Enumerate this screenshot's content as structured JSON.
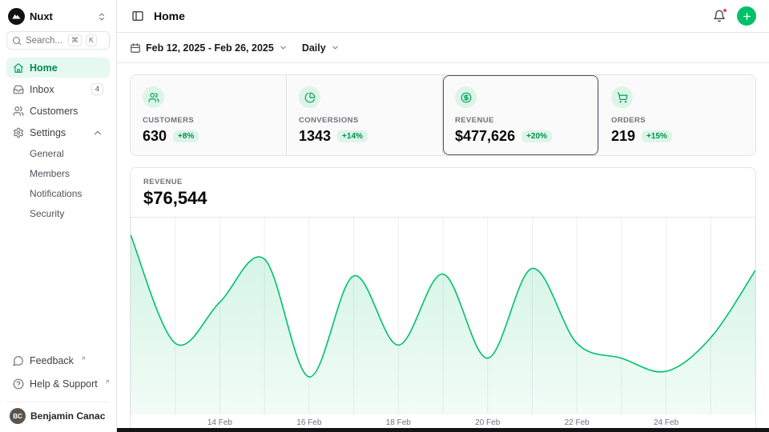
{
  "theme": {
    "accent": "#00c16a",
    "accent_soft": "#ddf4e8",
    "delta_text": "#00914c"
  },
  "sidebar": {
    "workspace": {
      "name": "Nuxt",
      "logo_icon": "nuxt-logo",
      "toggle_icon": "chevrons-up-down-icon"
    },
    "search": {
      "placeholder": "Search...",
      "icon": "search-icon",
      "shortcut": [
        "⌘",
        "K"
      ]
    },
    "items": [
      {
        "label": "Home",
        "icon": "home-icon",
        "active": true
      },
      {
        "label": "Inbox",
        "icon": "inbox-icon",
        "badge": "4"
      },
      {
        "label": "Customers",
        "icon": "users-icon"
      },
      {
        "label": "Settings",
        "icon": "gear-icon",
        "expanded": true,
        "children": [
          "General",
          "Members",
          "Notifications",
          "Security"
        ]
      }
    ],
    "footer": [
      {
        "label": "Feedback",
        "icon": "message-icon",
        "external": true
      },
      {
        "label": "Help & Support",
        "icon": "help-circle-icon",
        "external": true
      }
    ],
    "user": {
      "name": "Benjamin Canac",
      "initials": "BC",
      "toggle_icon": "chevrons-up-down-icon"
    }
  },
  "header": {
    "title": "Home",
    "left_icon": "panel-left-icon",
    "bell_icon": "bell-icon",
    "has_notification_dot": true,
    "add_icon": "plus-icon"
  },
  "toolbar": {
    "date_icon": "calendar-icon",
    "date_range": "Feb 12, 2025 - Feb 26, 2025",
    "granularity": "Daily"
  },
  "stats": [
    {
      "label": "CUSTOMERS",
      "value": "630",
      "delta": "+8%",
      "icon": "users-icon"
    },
    {
      "label": "CONVERSIONS",
      "value": "1343",
      "delta": "+14%",
      "icon": "pie-chart-icon"
    },
    {
      "label": "REVENUE",
      "value": "$477,626",
      "delta": "+20%",
      "icon": "circle-dollar-icon",
      "selected": true
    },
    {
      "label": "ORDERS",
      "value": "219",
      "delta": "+15%",
      "icon": "cart-icon"
    }
  ],
  "chart_data": {
    "type": "area",
    "title": "REVENUE",
    "displayed_value": "$76,544",
    "x": [
      "12 Feb",
      "13 Feb",
      "14 Feb",
      "15 Feb",
      "16 Feb",
      "17 Feb",
      "18 Feb",
      "19 Feb",
      "20 Feb",
      "21 Feb",
      "22 Feb",
      "23 Feb",
      "24 Feb",
      "25 Feb",
      "26 Feb"
    ],
    "values": [
      93000,
      35000,
      57000,
      80000,
      17000,
      71000,
      34000,
      72000,
      27000,
      75000,
      35000,
      27000,
      20000,
      38000,
      74000
    ],
    "ylim": [
      0,
      100000
    ],
    "xlabel": "",
    "ylabel": "",
    "tick_labels": [
      "14 Feb",
      "16 Feb",
      "18 Feb",
      "20 Feb",
      "22 Feb",
      "24 Feb"
    ],
    "grid": "vertical",
    "legend": false,
    "line_color": "#00c16a",
    "fill": "gradient"
  }
}
